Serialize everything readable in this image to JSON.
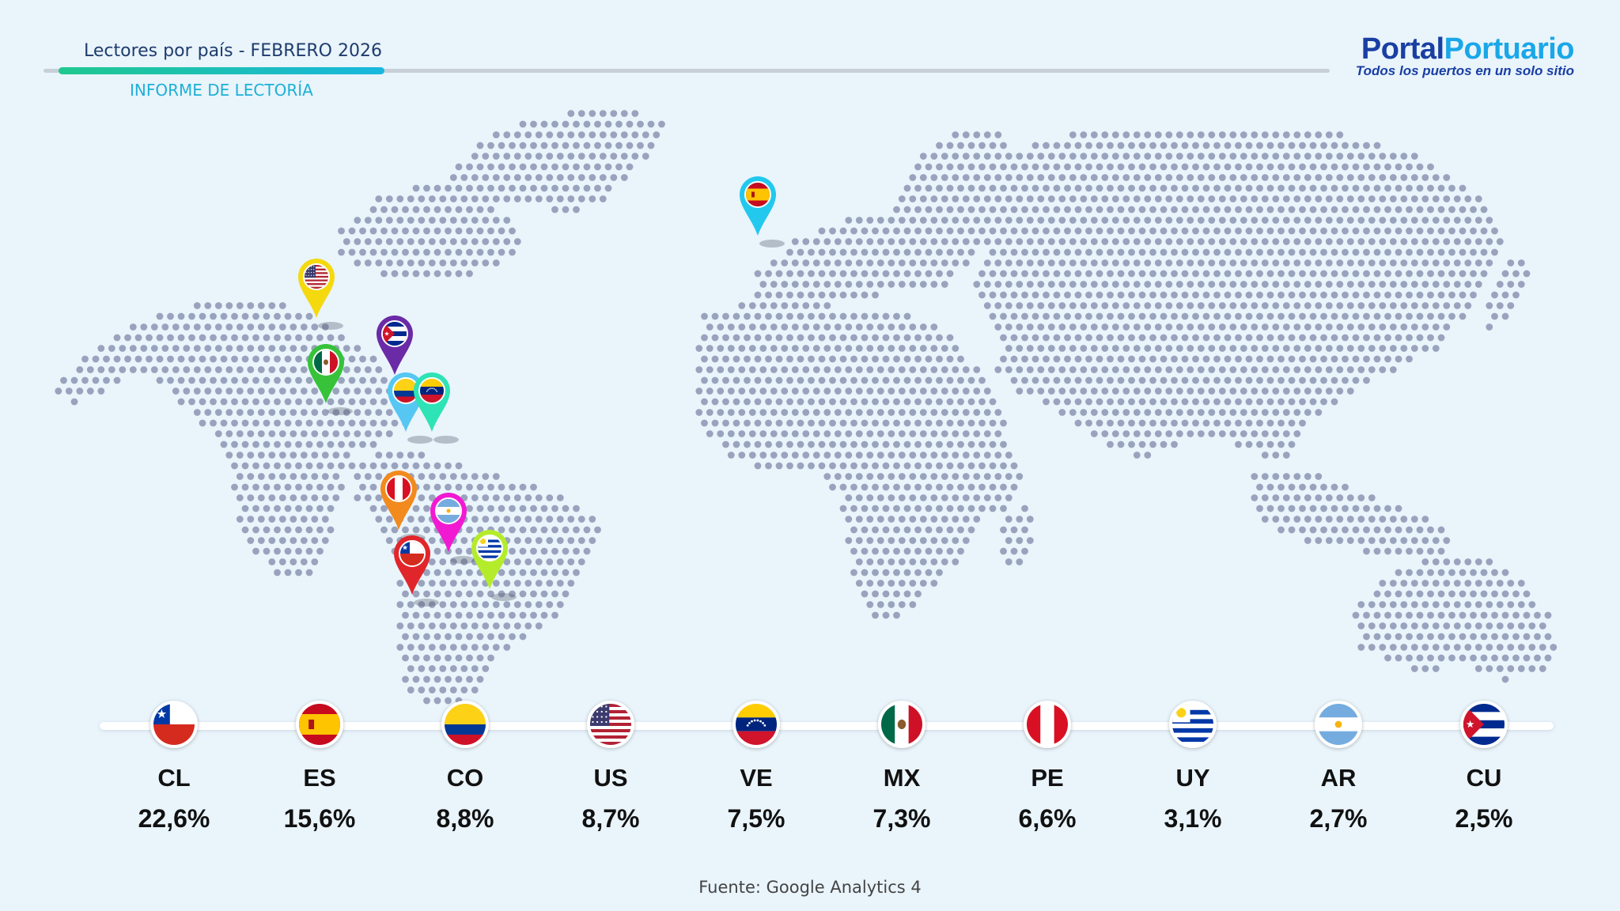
{
  "header": {
    "title": "Lectores por país - FEBRERO 2026",
    "subtitle": "INFORME DE LECTORÍA",
    "progress_fraction": 0.2
  },
  "logo": {
    "part1": "Portal",
    "part2": "Portuario",
    "tagline": "Todos los puertos en un solo sitio",
    "color1": "#1a3fa3",
    "color2": "#1aa7e8"
  },
  "colors": {
    "background": "#e9f4fb",
    "map_dots": "#9aa3bd",
    "accent_start": "#1fc88f",
    "accent_end": "#19b7df"
  },
  "chart_data": {
    "type": "bar",
    "categories": [
      "CL",
      "ES",
      "CO",
      "US",
      "VE",
      "MX",
      "PE",
      "UY",
      "AR",
      "CU"
    ],
    "values": [
      22.6,
      15.6,
      8.8,
      8.7,
      7.5,
      7.3,
      6.6,
      3.1,
      2.7,
      2.5
    ],
    "labels": [
      "22,6%",
      "15,6%",
      "8,8%",
      "8,7%",
      "7,5%",
      "7,3%",
      "6,6%",
      "3,1%",
      "2,7%",
      "2,5%"
    ],
    "unit": "%"
  },
  "pins": [
    {
      "country": "ES",
      "color": "#22c8ee"
    },
    {
      "country": "US",
      "color": "#f5d90f"
    },
    {
      "country": "CU",
      "color": "#6b2aa6"
    },
    {
      "country": "MX",
      "color": "#37c23a"
    },
    {
      "country": "CO",
      "color": "#56c7f2"
    },
    {
      "country": "VE",
      "color": "#2ee3b5"
    },
    {
      "country": "PE",
      "color": "#f28a1e"
    },
    {
      "country": "AR",
      "color": "#f11ad2"
    },
    {
      "country": "CL",
      "color": "#e1262b"
    },
    {
      "country": "UY",
      "color": "#b4ec2c"
    }
  ],
  "source": "Fuente: Google Analytics 4"
}
